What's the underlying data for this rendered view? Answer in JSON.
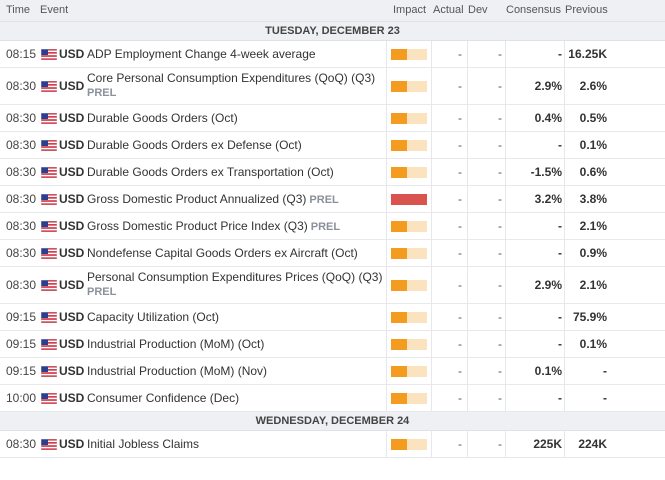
{
  "header": {
    "time": "Time",
    "event": "Event",
    "impact": "Impact",
    "actual": "Actual",
    "dev": "Dev",
    "consensus": "Consensus",
    "previous": "Previous"
  },
  "colors": {
    "medium_impact": "#f39c1f",
    "high_impact": "#d9534f",
    "header_bg": "#eef0f3"
  },
  "groups": [
    {
      "date": "TUESDAY, DECEMBER 23",
      "rows": [
        {
          "time": "08:15",
          "currency": "USD",
          "event": "ADP Employment Change 4-week average",
          "prel": "",
          "prel_wrap": false,
          "impact": "medium",
          "actual": "-",
          "dev": "-",
          "consensus": "-",
          "previous": "16.25K"
        },
        {
          "time": "08:30",
          "currency": "USD",
          "event": "Core Personal Consumption Expenditures (QoQ) (Q3)",
          "prel": "PREL",
          "prel_wrap": true,
          "impact": "medium",
          "actual": "-",
          "dev": "-",
          "consensus": "2.9%",
          "previous": "2.6%"
        },
        {
          "time": "08:30",
          "currency": "USD",
          "event": "Durable Goods Orders (Oct)",
          "prel": "",
          "prel_wrap": false,
          "impact": "medium",
          "actual": "-",
          "dev": "-",
          "consensus": "0.4%",
          "previous": "0.5%"
        },
        {
          "time": "08:30",
          "currency": "USD",
          "event": "Durable Goods Orders ex Defense (Oct)",
          "prel": "",
          "prel_wrap": false,
          "impact": "medium",
          "actual": "-",
          "dev": "-",
          "consensus": "-",
          "previous": "0.1%"
        },
        {
          "time": "08:30",
          "currency": "USD",
          "event": "Durable Goods Orders ex Transportation (Oct)",
          "prel": "",
          "prel_wrap": false,
          "impact": "medium",
          "actual": "-",
          "dev": "-",
          "consensus": "-1.5%",
          "previous": "0.6%"
        },
        {
          "time": "08:30",
          "currency": "USD",
          "event": "Gross Domestic Product Annualized (Q3)",
          "prel": "PREL",
          "prel_wrap": false,
          "impact": "high",
          "actual": "-",
          "dev": "-",
          "consensus": "3.2%",
          "previous": "3.8%"
        },
        {
          "time": "08:30",
          "currency": "USD",
          "event": "Gross Domestic Product Price Index (Q3)",
          "prel": "PREL",
          "prel_wrap": false,
          "impact": "medium",
          "actual": "-",
          "dev": "-",
          "consensus": "-",
          "previous": "2.1%"
        },
        {
          "time": "08:30",
          "currency": "USD",
          "event": "Nondefense Capital Goods Orders ex Aircraft (Oct)",
          "prel": "",
          "prel_wrap": false,
          "impact": "medium",
          "actual": "-",
          "dev": "-",
          "consensus": "-",
          "previous": "0.9%"
        },
        {
          "time": "08:30",
          "currency": "USD",
          "event": "Personal Consumption Expenditures Prices (QoQ) (Q3)",
          "prel": "PREL",
          "prel_wrap": true,
          "impact": "medium",
          "actual": "-",
          "dev": "-",
          "consensus": "2.9%",
          "previous": "2.1%"
        },
        {
          "time": "09:15",
          "currency": "USD",
          "event": "Capacity Utilization (Oct)",
          "prel": "",
          "prel_wrap": false,
          "impact": "medium",
          "actual": "-",
          "dev": "-",
          "consensus": "-",
          "previous": "75.9%"
        },
        {
          "time": "09:15",
          "currency": "USD",
          "event": "Industrial Production (MoM) (Oct)",
          "prel": "",
          "prel_wrap": false,
          "impact": "medium",
          "actual": "-",
          "dev": "-",
          "consensus": "-",
          "previous": "0.1%"
        },
        {
          "time": "09:15",
          "currency": "USD",
          "event": "Industrial Production (MoM) (Nov)",
          "prel": "",
          "prel_wrap": false,
          "impact": "medium",
          "actual": "-",
          "dev": "-",
          "consensus": "0.1%",
          "previous": "-"
        },
        {
          "time": "10:00",
          "currency": "USD",
          "event": "Consumer Confidence (Dec)",
          "prel": "",
          "prel_wrap": false,
          "impact": "medium",
          "actual": "-",
          "dev": "-",
          "consensus": "-",
          "previous": "-"
        }
      ]
    },
    {
      "date": "WEDNESDAY, DECEMBER 24",
      "rows": [
        {
          "time": "08:30",
          "currency": "USD",
          "event": "Initial Jobless Claims",
          "prel": "",
          "prel_wrap": false,
          "impact": "medium",
          "actual": "-",
          "dev": "-",
          "consensus": "225K",
          "previous": "224K"
        }
      ]
    }
  ]
}
